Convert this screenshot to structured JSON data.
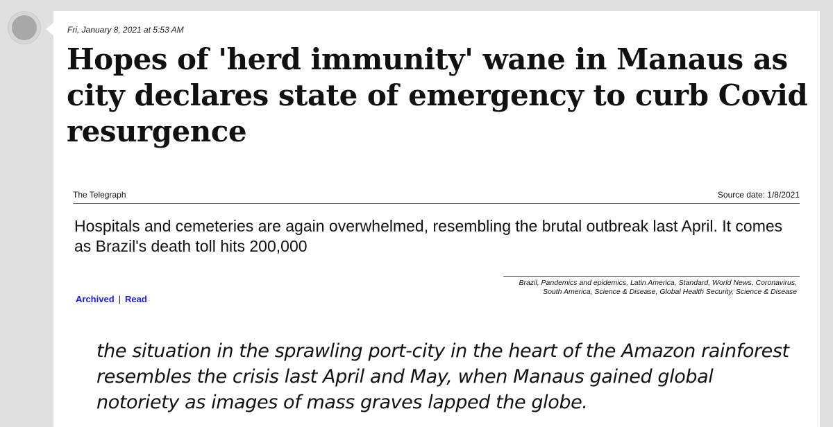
{
  "post": {
    "timestamp": "Fri, January 8, 2021 at 5:53 AM",
    "headline": "Hopes of 'herd immunity' wane in Manaus as city declares state of emergency to curb Covid resurgence",
    "source_name": "The Telegraph",
    "source_date": "Source date: 1/8/2021",
    "summary": "Hospitals and cemeteries are again overwhelmed, resembling the brutal outbreak last April. It comes as Brazil's death toll hits 200,000",
    "links": {
      "archived": "Archived",
      "separator": "|",
      "read": "Read"
    },
    "tags": "Brazil, Pandemics and epidemics, Latin America, Standard, World News, Coronavirus, South America, Science & Disease, Global Health Security, Science & Disease",
    "quote": "the situation in the sprawling port-city in the heart of the Amazon rainforest resembles the crisis last April and May, when Manaus gained global notoriety as images of mass graves lapped the globe."
  },
  "colors": {
    "page_background": "#e0e0e0",
    "card_background": "#ffffff",
    "link": "#1a1aff"
  }
}
